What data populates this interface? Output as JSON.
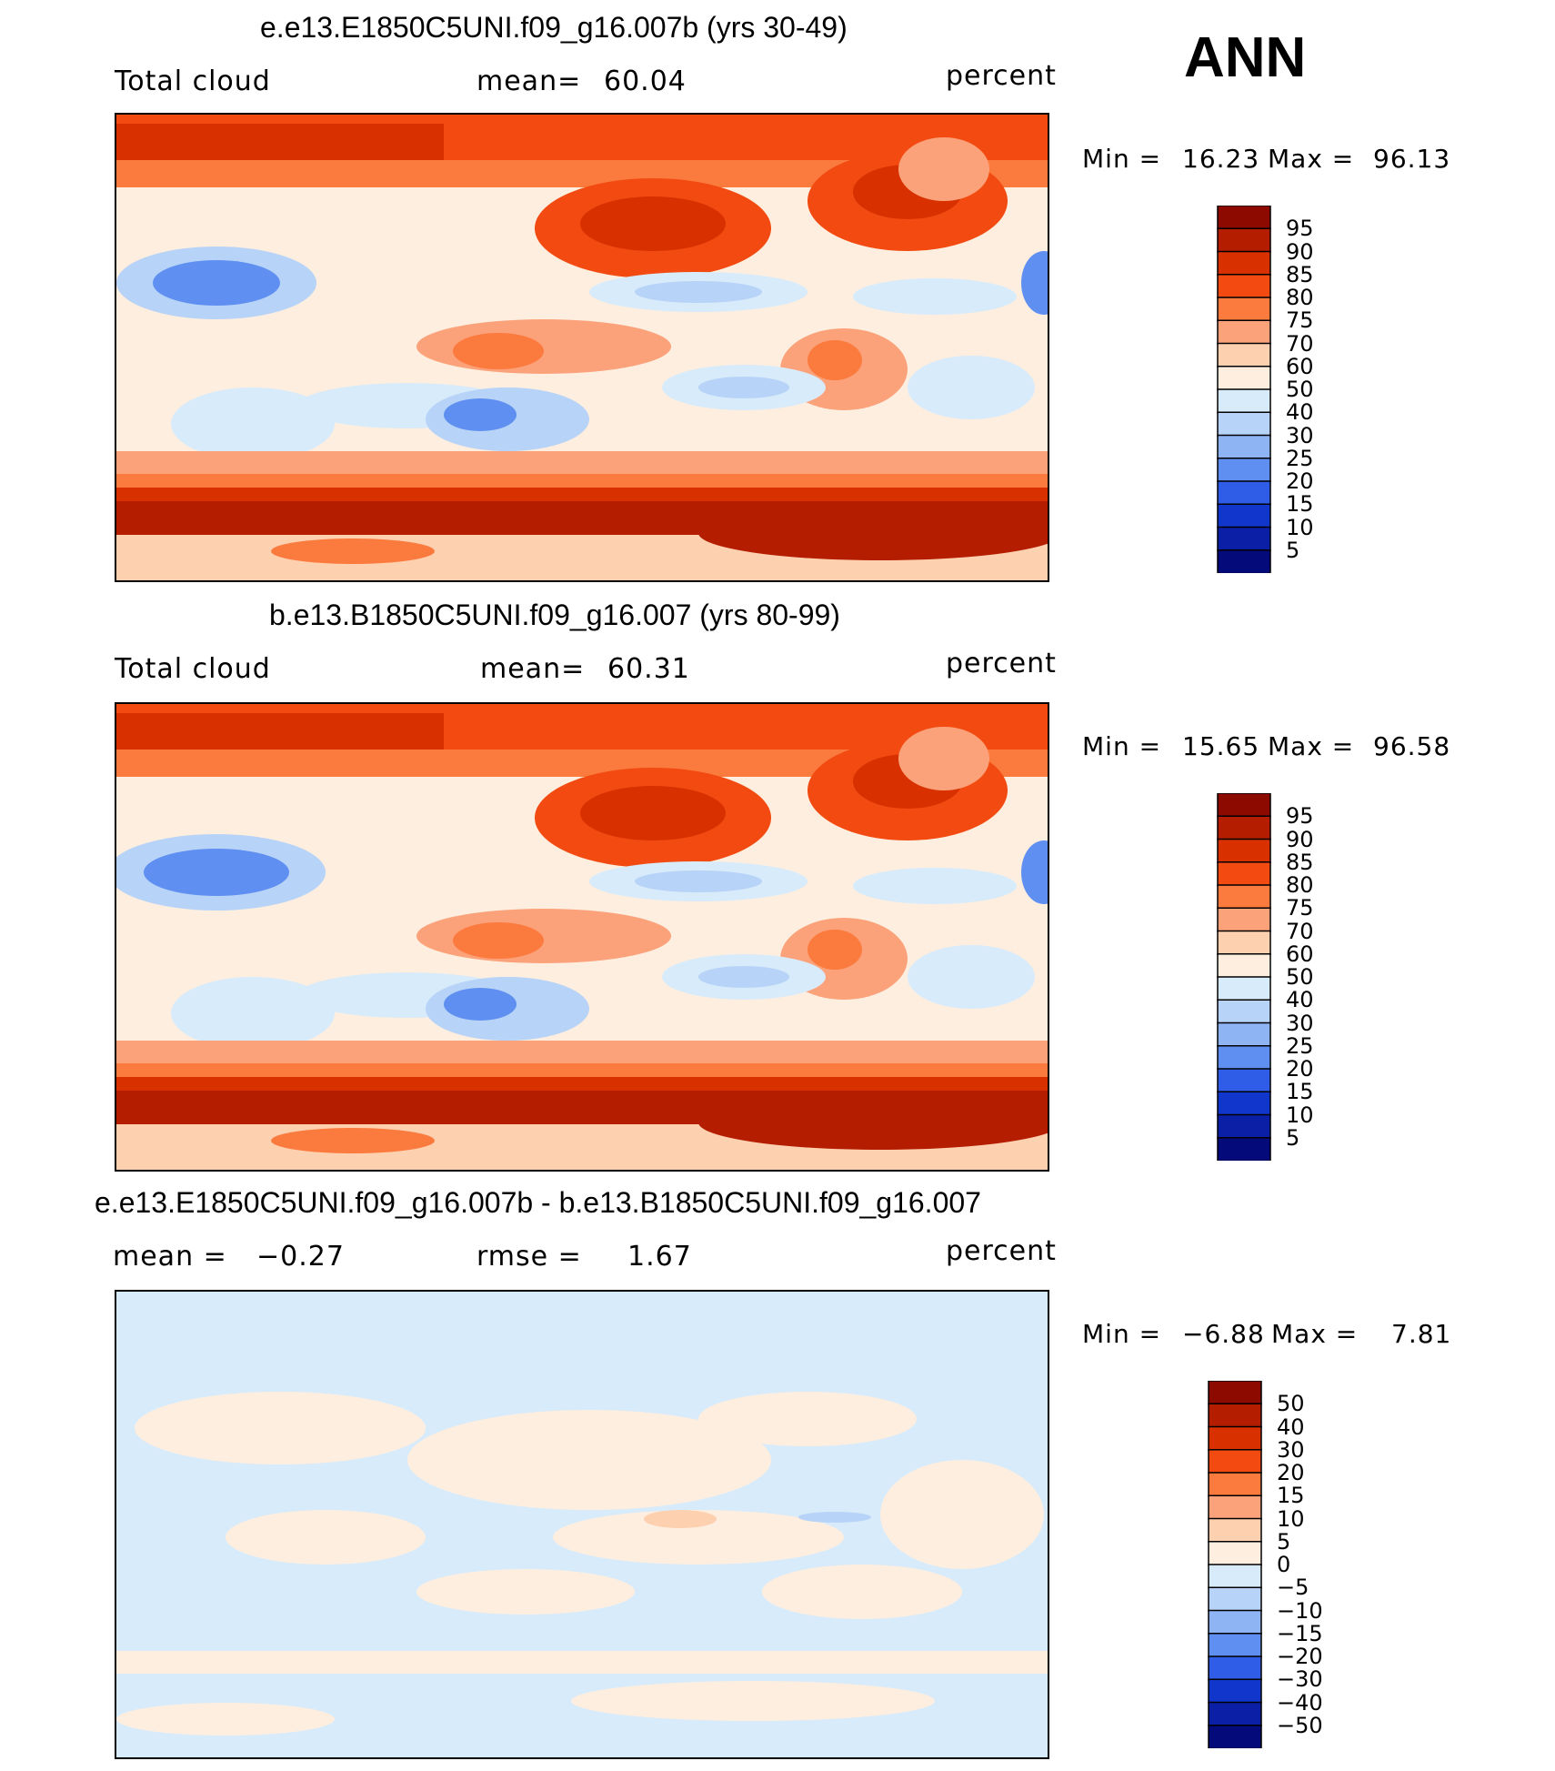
{
  "header": {
    "season": "ANN"
  },
  "panels": [
    {
      "title": "e.e13.E1850C5UNI.f09_g16.007b (yrs 30-49)",
      "variable": "Total cloud",
      "stat1_label": "mean=",
      "stat1_value": "60.04",
      "stat2_label": "",
      "stat2_value": "",
      "units": "percent",
      "min_label": "Min =",
      "min_value": "16.23",
      "max_label": "Max =",
      "max_value": "96.13"
    },
    {
      "title": "b.e13.B1850C5UNI.f09_g16.007 (yrs 80-99)",
      "variable": "Total cloud",
      "stat1_label": "mean=",
      "stat1_value": "60.31",
      "stat2_label": "",
      "stat2_value": "",
      "units": "percent",
      "min_label": "Min =",
      "min_value": "15.65",
      "max_label": "Max =",
      "max_value": "96.58"
    },
    {
      "title": "e.e13.E1850C5UNI.f09_g16.007b - b.e13.B1850C5UNI.f09_g16.007",
      "variable": "",
      "stat1_label": "mean =",
      "stat1_value": "−0.27",
      "stat2_label": "rmse =",
      "stat2_value": "1.67",
      "units": "percent",
      "min_label": "Min =",
      "min_value": "−6.88",
      "max_label": "Max =",
      "max_value": "7.81"
    }
  ],
  "colorbars": {
    "field": {
      "labels": [
        "95",
        "90",
        "85",
        "80",
        "75",
        "70",
        "60",
        "50",
        "40",
        "30",
        "25",
        "20",
        "15",
        "10",
        "5"
      ],
      "colors": [
        "#8c0a00",
        "#b51d00",
        "#d93000",
        "#f24a10",
        "#fb7a3e",
        "#fca27a",
        "#fdd0b0",
        "#fdeedf",
        "#d8ebfb",
        "#b7d3f7",
        "#8fb4f4",
        "#5f8ff1",
        "#2f5de8",
        "#1136cc",
        "#0a1fa6",
        "#040a7a"
      ]
    },
    "diff": {
      "labels": [
        "50",
        "40",
        "30",
        "20",
        "15",
        "10",
        "5",
        "0",
        "−5",
        "−10",
        "−15",
        "−20",
        "−30",
        "−40",
        "−50"
      ],
      "colors": [
        "#8c0a00",
        "#b51d00",
        "#d93000",
        "#f24a10",
        "#fb7a3e",
        "#fca27a",
        "#fdd0b0",
        "#fdeedf",
        "#d8ebfb",
        "#b7d3f7",
        "#8fb4f4",
        "#5f8ff1",
        "#2f5de8",
        "#1136cc",
        "#0a1fa6",
        "#040a7a"
      ]
    }
  },
  "chart_data": [
    {
      "type": "heatmap",
      "title": "e.e13.E1850C5UNI.f09_g16.007b (yrs 30-49)",
      "variable": "Total cloud",
      "units": "percent",
      "mean": 60.04,
      "min": 16.23,
      "max": 96.13,
      "contour_levels": [
        5,
        10,
        15,
        20,
        25,
        30,
        40,
        50,
        60,
        70,
        75,
        80,
        85,
        90,
        95
      ]
    },
    {
      "type": "heatmap",
      "title": "b.e13.B1850C5UNI.f09_g16.007 (yrs 80-99)",
      "variable": "Total cloud",
      "units": "percent",
      "mean": 60.31,
      "min": 15.65,
      "max": 96.58,
      "contour_levels": [
        5,
        10,
        15,
        20,
        25,
        30,
        40,
        50,
        60,
        70,
        75,
        80,
        85,
        90,
        95
      ]
    },
    {
      "type": "heatmap",
      "title": "e.e13.E1850C5UNI.f09_g16.007b - b.e13.B1850C5UNI.f09_g16.007",
      "units": "percent",
      "mean": -0.27,
      "rmse": 1.67,
      "min": -6.88,
      "max": 7.81,
      "contour_levels": [
        -50,
        -40,
        -30,
        -20,
        -15,
        -10,
        -5,
        0,
        5,
        10,
        15,
        20,
        30,
        40,
        50
      ]
    }
  ]
}
